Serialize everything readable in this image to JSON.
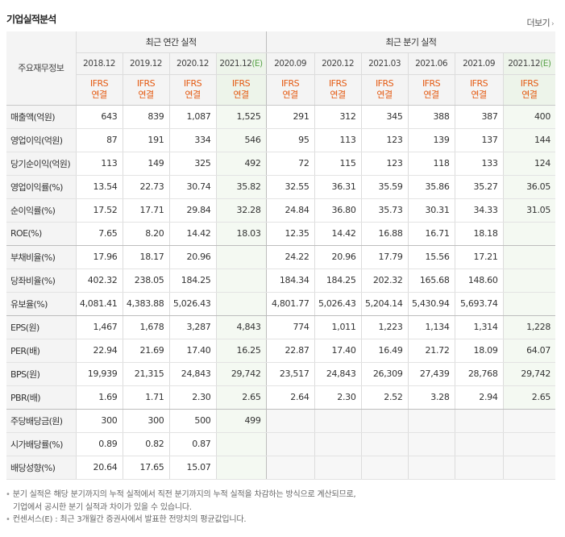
{
  "title": "기업실적분석",
  "more": {
    "label": "더보기",
    "icon": "chevron-right-icon"
  },
  "table": {
    "corner": "주요재무정보",
    "groups": {
      "annual": "최근 연간 실적",
      "quarter": "최근 분기 실적"
    },
    "periods": [
      {
        "label": "2018.12",
        "std1": "IFRS",
        "std2": "연결",
        "estimate": false
      },
      {
        "label": "2019.12",
        "std1": "IFRS",
        "std2": "연결",
        "estimate": false
      },
      {
        "label": "2020.12",
        "std1": "IFRS",
        "std2": "연결",
        "estimate": false
      },
      {
        "label": "2021.12",
        "mark": "(E)",
        "std1": "IFRS",
        "std2": "연결",
        "estimate": true
      },
      {
        "label": "2020.09",
        "std1": "IFRS",
        "std2": "연결",
        "estimate": false
      },
      {
        "label": "2020.12",
        "std1": "IFRS",
        "std2": "연결",
        "estimate": false
      },
      {
        "label": "2021.03",
        "std1": "IFRS",
        "std2": "연결",
        "estimate": false
      },
      {
        "label": "2021.06",
        "std1": "IFRS",
        "std2": "연결",
        "estimate": false
      },
      {
        "label": "2021.09",
        "std1": "IFRS",
        "std2": "연결",
        "estimate": false
      },
      {
        "label": "2021.12",
        "mark": "(E)",
        "std1": "IFRS",
        "std2": "연결",
        "estimate": true
      }
    ],
    "rows": [
      {
        "label": "매출액(억원)",
        "values": [
          "643",
          "839",
          "1,087",
          "1,525",
          "291",
          "312",
          "345",
          "388",
          "387",
          "400"
        ]
      },
      {
        "label": "영업이익(억원)",
        "values": [
          "87",
          "191",
          "334",
          "546",
          "95",
          "113",
          "123",
          "139",
          "137",
          "144"
        ]
      },
      {
        "label": "당기순이익(억원)",
        "values": [
          "113",
          "149",
          "325",
          "492",
          "72",
          "115",
          "123",
          "118",
          "133",
          "124"
        ]
      },
      {
        "label": "영업이익률(%)",
        "values": [
          "13.54",
          "22.73",
          "30.74",
          "35.82",
          "32.55",
          "36.31",
          "35.59",
          "35.86",
          "35.27",
          "36.05"
        ]
      },
      {
        "label": "순이익률(%)",
        "values": [
          "17.52",
          "17.71",
          "29.84",
          "32.28",
          "24.84",
          "36.80",
          "35.73",
          "30.31",
          "34.33",
          "31.05"
        ]
      },
      {
        "label": "ROE(%)",
        "values": [
          "7.65",
          "8.20",
          "14.42",
          "18.03",
          "12.35",
          "14.42",
          "16.88",
          "16.71",
          "18.18",
          ""
        ]
      },
      {
        "label": "부채비율(%)",
        "values": [
          "17.96",
          "18.17",
          "20.96",
          "",
          "24.22",
          "20.96",
          "17.79",
          "15.56",
          "17.21",
          ""
        ]
      },
      {
        "label": "당좌비율(%)",
        "values": [
          "402.32",
          "238.05",
          "184.25",
          "",
          "184.34",
          "184.25",
          "202.32",
          "165.68",
          "148.60",
          ""
        ]
      },
      {
        "label": "유보율(%)",
        "values": [
          "4,081.41",
          "4,383.88",
          "5,026.43",
          "",
          "4,801.77",
          "5,026.43",
          "5,204.14",
          "5,430.94",
          "5,693.74",
          ""
        ]
      },
      {
        "label": "EPS(원)",
        "values": [
          "1,467",
          "1,678",
          "3,287",
          "4,843",
          "774",
          "1,011",
          "1,223",
          "1,134",
          "1,314",
          "1,228"
        ]
      },
      {
        "label": "PER(배)",
        "values": [
          "22.94",
          "21.69",
          "17.40",
          "16.25",
          "22.87",
          "17.40",
          "16.49",
          "21.72",
          "18.09",
          "64.07"
        ]
      },
      {
        "label": "BPS(원)",
        "values": [
          "19,939",
          "21,315",
          "24,843",
          "29,742",
          "23,517",
          "24,843",
          "26,309",
          "27,439",
          "28,768",
          "29,742"
        ]
      },
      {
        "label": "PBR(배)",
        "values": [
          "1.69",
          "1.71",
          "2.30",
          "2.65",
          "2.64",
          "2.30",
          "2.52",
          "3.28",
          "2.94",
          "2.65"
        ]
      },
      {
        "label": "주당배당금(원)",
        "values": [
          "300",
          "300",
          "500",
          "499",
          "",
          "",
          "",
          "",
          "",
          ""
        ]
      },
      {
        "label": "시가배당률(%)",
        "values": [
          "0.89",
          "0.82",
          "0.87",
          "",
          "",
          "",
          "",
          "",
          "",
          ""
        ]
      },
      {
        "label": "배당성향(%)",
        "values": [
          "20.64",
          "17.65",
          "15.07",
          "",
          "",
          "",
          "",
          "",
          "",
          ""
        ]
      }
    ]
  },
  "notes": {
    "line1": "분기 실적은 해당 분기까지의 누적 실적에서 직전 분기까지의 누적 실적을 차감하는 방식으로 계산되므로,",
    "line2": "기업에서 공시한 분기 실적과 차이가 있을 수 있습니다.",
    "line3": "컨센서스(E) : 최근 3개월간 증권사에서 발표한 전망치의 평균값입니다."
  }
}
